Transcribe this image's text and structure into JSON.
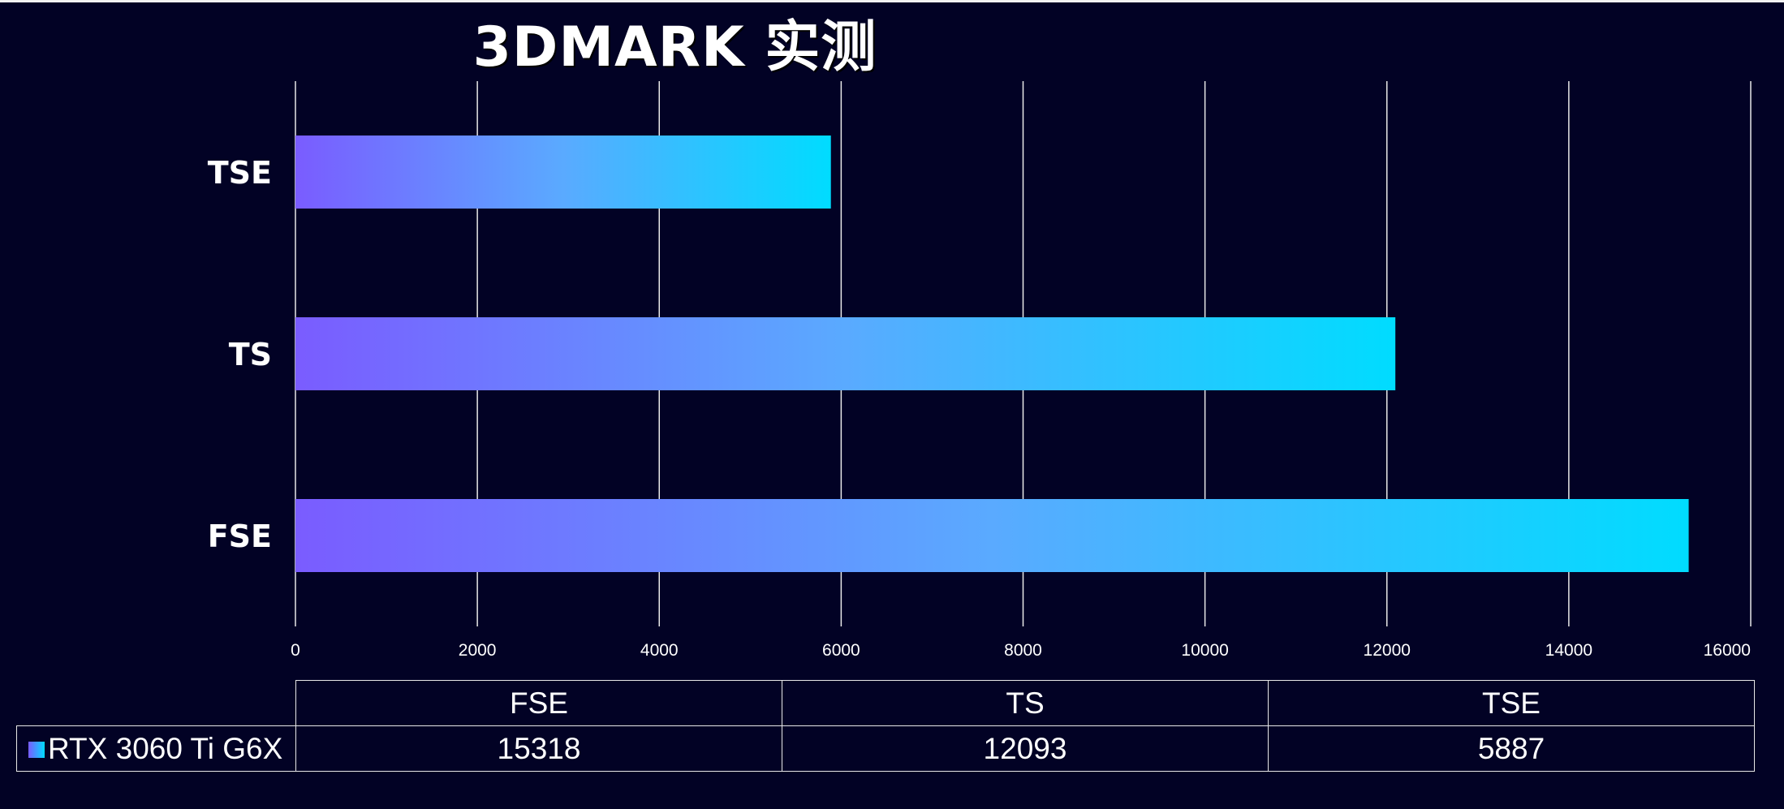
{
  "colors": {
    "background": "#020225",
    "bar_start": "#7a5cff",
    "bar_mid": "#5aaaff",
    "bar_end": "#00dcff",
    "grid": "#e8e8e8",
    "text": "#ffffff"
  },
  "chart_data": {
    "type": "bar",
    "orientation": "horizontal",
    "title": "3DMARK 实测",
    "categories": [
      "TSE",
      "TS",
      "FSE"
    ],
    "series": [
      {
        "name": "RTX 3060 Ti G6X",
        "values": [
          5887,
          12093,
          15318
        ]
      }
    ],
    "xlim": [
      0,
      16000
    ],
    "xticks": [
      0,
      2000,
      4000,
      6000,
      8000,
      10000,
      12000,
      14000,
      16000
    ],
    "grid": "vertical",
    "legend": "data-table",
    "data_table": {
      "columns": [
        "FSE",
        "TS",
        "TSE"
      ],
      "rows": [
        {
          "series": "RTX 3060 Ti G6X",
          "values": [
            "15318",
            "12093",
            "5887"
          ]
        }
      ]
    }
  }
}
